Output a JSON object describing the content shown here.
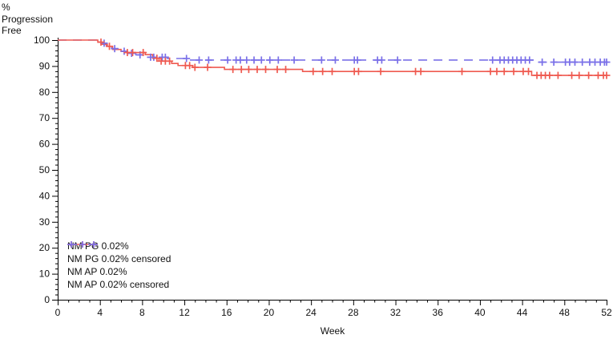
{
  "chart_data": {
    "type": "line",
    "subtype": "kaplan_meier_step_curves",
    "title": "",
    "xlabel": "Week",
    "ylabel_lines": [
      "%",
      "Progression",
      "Free"
    ],
    "xlim": [
      0,
      52
    ],
    "ylim": [
      0,
      100
    ],
    "x_major_ticks": [
      0,
      4,
      8,
      12,
      16,
      20,
      24,
      28,
      32,
      36,
      40,
      44,
      48,
      52
    ],
    "x_minor_step": 1,
    "y_major_ticks": [
      0,
      10,
      20,
      30,
      40,
      50,
      60,
      70,
      80,
      90,
      100
    ],
    "y_minor_step": 2,
    "grid": false,
    "axis_color": "#000000",
    "text_color": "#111111",
    "legend_position": "inside-lower-left",
    "series": [
      {
        "name": "NM PG 0.02%",
        "color": "#ef5a50",
        "line_style": "solid",
        "steps": [
          [
            0,
            100
          ],
          [
            3.8,
            99.2
          ],
          [
            4.2,
            98.4
          ],
          [
            4.7,
            97.6
          ],
          [
            5.2,
            96.4
          ],
          [
            6.0,
            95.6
          ],
          [
            6.6,
            95.2
          ],
          [
            8.3,
            94.4
          ],
          [
            9.0,
            93.0
          ],
          [
            9.6,
            91.9
          ],
          [
            10.8,
            91.0
          ],
          [
            11.4,
            90.2
          ],
          [
            12.8,
            89.5
          ],
          [
            15.8,
            88.7
          ],
          [
            23.2,
            87.9
          ],
          [
            44.9,
            86.4
          ],
          [
            52,
            86.4
          ]
        ]
      },
      {
        "name": "NM PG 0.02% censored",
        "color": "#ef5a50",
        "marker": "plus",
        "censor_weeks": [
          4.1,
          4.9,
          6.6,
          7.1,
          8.1,
          9.4,
          9.8,
          10.2,
          10.6,
          12.1,
          12.5,
          13.0,
          14.2,
          16.6,
          17.4,
          18.1,
          18.9,
          19.7,
          20.8,
          21.6,
          24.2,
          25.1,
          26.0,
          28.1,
          28.5,
          30.6,
          33.9,
          34.4,
          38.3,
          41.0,
          41.6,
          42.3,
          43.2,
          44.1,
          44.6,
          45.4,
          45.8,
          46.2,
          46.6,
          47.4,
          48.7,
          49.4,
          50.3,
          51.2,
          51.7,
          52.0
        ]
      },
      {
        "name": "NM AP 0.02%",
        "color": "#7a70e8",
        "line_style": "dashed",
        "steps": [
          [
            0,
            100
          ],
          [
            4.0,
            98.8
          ],
          [
            4.6,
            97.8
          ],
          [
            5.1,
            96.7
          ],
          [
            5.7,
            95.7
          ],
          [
            6.6,
            94.9
          ],
          [
            7.4,
            94.3
          ],
          [
            8.3,
            93.4
          ],
          [
            10.4,
            92.9
          ],
          [
            12.5,
            92.3
          ],
          [
            45.2,
            91.5
          ],
          [
            52,
            91.5
          ]
        ]
      },
      {
        "name": "NM AP 0.02% censored",
        "color": "#7a70e8",
        "marker": "plus",
        "censor_weeks": [
          4.4,
          5.4,
          6.3,
          7.0,
          7.8,
          8.8,
          9.1,
          9.9,
          10.2,
          12.2,
          13.4,
          14.3,
          16.1,
          16.9,
          17.3,
          17.9,
          18.6,
          19.3,
          20.1,
          20.9,
          22.4,
          25.0,
          26.3,
          28.1,
          28.4,
          30.3,
          30.7,
          32.2,
          41.2,
          41.9,
          42.3,
          42.7,
          43.1,
          43.5,
          43.9,
          44.3,
          44.7,
          45.9,
          47.0,
          48.1,
          48.5,
          49.0,
          49.7,
          50.4,
          50.9,
          51.4,
          51.8,
          52.0
        ]
      }
    ],
    "legend": [
      {
        "label": "NM PG 0.02%",
        "swatch": "line-solid",
        "color": "#ef5a50"
      },
      {
        "label": "NM PG 0.02% censored",
        "swatch": "plus",
        "color": "#ef5a50"
      },
      {
        "label": "NM AP 0.02%",
        "swatch": "line-dashed",
        "color": "#7a70e8"
      },
      {
        "label": "NM AP 0.02% censored",
        "swatch": "plus",
        "color": "#7a70e8"
      }
    ]
  }
}
